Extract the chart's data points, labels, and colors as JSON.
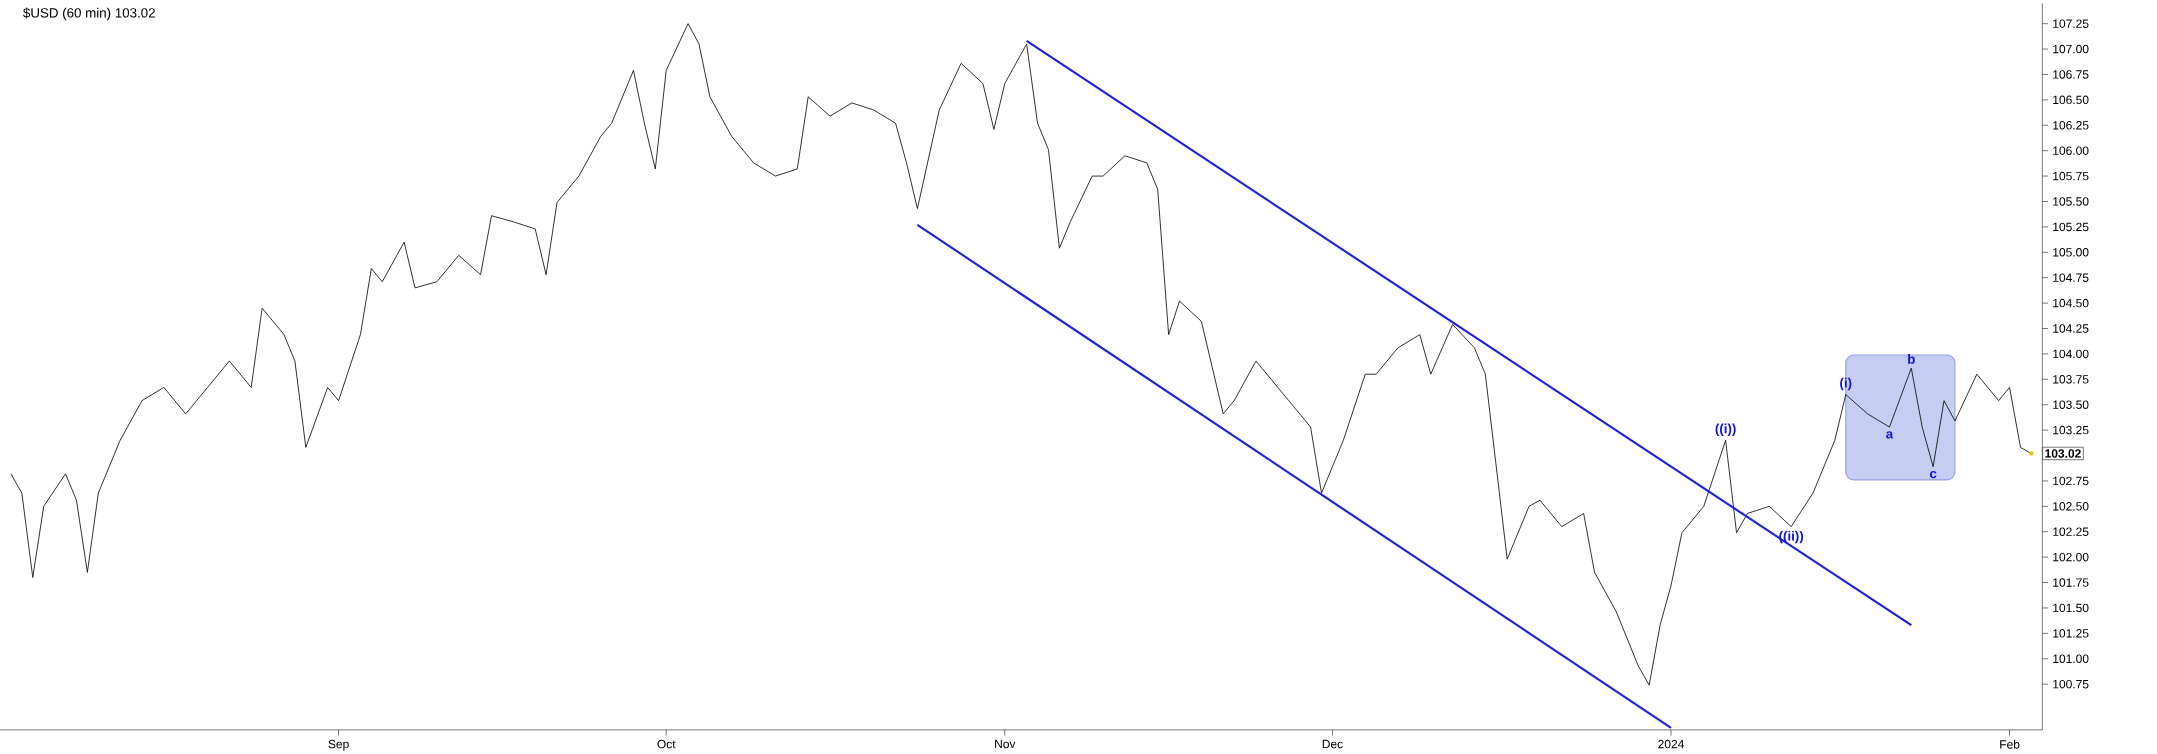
{
  "chart_data": {
    "type": "line",
    "title": "$USD (60 min) 103.02",
    "xlim": [
      "2023-08-01",
      "2024-02-04"
    ],
    "xticks": [
      {
        "value": "2023-09-01",
        "label": "Sep"
      },
      {
        "value": "2023-10-01",
        "label": "Oct"
      },
      {
        "value": "2023-11-01",
        "label": "Nov"
      },
      {
        "value": "2023-12-01",
        "label": "Dec"
      },
      {
        "value": "2024-01-01",
        "label": "2024"
      },
      {
        "value": "2024-02-01",
        "label": "Feb"
      }
    ],
    "ylim": [
      100.3,
      107.45
    ],
    "yticks": [
      100.75,
      {
        "value": 101.0,
        "label": "101.00"
      },
      101.25,
      {
        "value": 101.5,
        "label": "101.50"
      },
      101.75,
      {
        "value": 102.0,
        "label": "102.00"
      },
      102.25,
      {
        "value": 102.5,
        "label": "102.50"
      },
      102.75,
      103.25,
      {
        "value": 103.5,
        "label": "103.50"
      },
      103.75,
      {
        "value": 104.0,
        "label": "104.00"
      },
      104.25,
      {
        "value": 104.5,
        "label": "104.50"
      },
      104.75,
      {
        "value": 105.0,
        "label": "105.00"
      },
      105.25,
      {
        "value": 105.5,
        "label": "105.50"
      },
      105.75,
      {
        "value": 106.0,
        "label": "106.00"
      },
      106.25,
      {
        "value": 106.5,
        "label": "106.50"
      },
      106.75,
      {
        "value": 107.0,
        "label": "107.00"
      },
      107.25
    ],
    "series": [
      {
        "color": "#000000",
        "x": [
          "2023-08-02",
          "2023-08-03",
          "2023-08-04",
          "2023-08-05",
          "2023-08-07",
          "2023-08-08",
          "2023-08-09",
          "2023-08-10",
          "2023-08-12",
          "2023-08-14",
          "2023-08-16",
          "2023-08-18",
          "2023-08-20",
          "2023-08-22",
          "2023-08-24",
          "2023-08-25",
          "2023-08-27",
          "2023-08-28",
          "2023-08-29",
          "2023-08-31",
          "2023-09-01",
          "2023-09-03",
          "2023-09-04",
          "2023-09-05",
          "2023-09-07",
          "2023-09-08",
          "2023-09-10",
          "2023-09-12",
          "2023-09-14",
          "2023-09-15",
          "2023-09-17",
          "2023-09-19",
          "2023-09-20",
          "2023-09-21",
          "2023-09-23",
          "2023-09-25",
          "2023-09-26",
          "2023-09-28",
          "2023-09-29",
          "2023-09-30",
          "2023-10-01",
          "2023-10-03",
          "2023-10-04",
          "2023-10-05",
          "2023-10-07",
          "2023-10-09",
          "2023-10-11",
          "2023-10-13",
          "2023-10-14",
          "2023-10-16",
          "2023-10-18",
          "2023-10-20",
          "2023-10-22",
          "2023-10-23",
          "2023-10-24",
          "2023-10-26",
          "2023-10-28",
          "2023-10-30",
          "2023-10-31",
          "2023-11-01",
          "2023-11-03",
          "2023-11-04",
          "2023-11-05",
          "2023-11-06",
          "2023-11-07",
          "2023-11-09",
          "2023-11-10",
          "2023-11-12",
          "2023-11-14",
          "2023-11-15",
          "2023-11-16",
          "2023-11-17",
          "2023-11-19",
          "2023-11-21",
          "2023-11-22",
          "2023-11-24",
          "2023-11-25",
          "2023-11-27",
          "2023-11-29",
          "2023-11-30",
          "2023-12-02",
          "2023-12-04",
          "2023-12-05",
          "2023-12-07",
          "2023-12-09",
          "2023-12-10",
          "2023-12-12",
          "2023-12-14",
          "2023-12-15",
          "2023-12-16",
          "2023-12-17",
          "2023-12-19",
          "2023-12-20",
          "2023-12-22",
          "2023-12-24",
          "2023-12-25",
          "2023-12-27",
          "2023-12-29",
          "2023-12-30",
          "2023-12-31",
          "2024-01-01",
          "2024-01-02",
          "2024-01-04",
          "2024-01-06",
          "2024-01-07",
          "2024-01-08",
          "2024-01-10",
          "2024-01-12",
          "2024-01-14",
          "2024-01-16",
          "2024-01-17",
          "2024-01-19",
          "2024-01-21",
          "2024-01-23",
          "2024-01-24",
          "2024-01-25",
          "2024-01-26",
          "2024-01-27",
          "2024-01-29",
          "2024-01-31",
          "2024-02-01",
          "2024-02-02",
          "2024-02-03"
        ],
        "values": [
          102.82,
          102.63,
          101.8,
          102.5,
          102.82,
          102.56,
          101.85,
          102.63,
          103.15,
          103.54,
          103.67,
          103.41,
          103.67,
          103.93,
          103.67,
          104.45,
          104.19,
          103.93,
          103.08,
          103.67,
          103.54,
          104.19,
          104.84,
          104.71,
          105.1,
          104.65,
          104.71,
          104.97,
          104.78,
          105.36,
          105.3,
          105.23,
          104.78,
          105.49,
          105.75,
          106.14,
          106.27,
          106.79,
          106.27,
          105.82,
          106.79,
          107.25,
          107.05,
          106.53,
          106.14,
          105.88,
          105.75,
          105.82,
          106.53,
          106.34,
          106.47,
          106.4,
          106.27,
          105.88,
          105.43,
          106.4,
          106.86,
          106.66,
          106.21,
          106.66,
          107.05,
          106.27,
          106.01,
          105.04,
          105.3,
          105.75,
          105.75,
          105.95,
          105.88,
          105.62,
          104.19,
          104.52,
          104.32,
          103.41,
          103.54,
          103.93,
          103.8,
          103.54,
          103.28,
          102.63,
          103.15,
          103.8,
          103.8,
          104.06,
          104.19,
          103.8,
          104.29,
          104.06,
          103.8,
          102.89,
          101.98,
          102.5,
          102.56,
          102.3,
          102.43,
          101.85,
          101.46,
          100.93,
          100.74,
          101.33,
          101.72,
          102.24,
          102.5,
          103.15,
          102.24,
          102.43,
          102.5,
          102.3,
          102.63,
          103.15,
          103.6,
          103.41,
          103.28,
          103.86,
          103.28,
          102.89,
          103.54,
          103.34,
          103.8,
          103.54,
          103.67,
          103.08,
          103.02
        ]
      },
      {
        "color": "#1f1fe0",
        "x": [
          "2023-11-03",
          "2024-01-23"
        ],
        "values": [
          107.08,
          101.33
        ]
      },
      {
        "color": "#1f1fe0",
        "x": [
          "2023-10-24",
          "2024-01-01"
        ],
        "values": [
          105.27,
          100.32
        ]
      },
      {
        "type": "area",
        "color": "#c6cdf2",
        "x": [
          "2024-01-17",
          "2024-01-27"
        ],
        "values": [
          null,
          null
        ],
        "lower": [
          102.76,
          102.76
        ],
        "upper": [
          103.99,
          103.99
        ]
      }
    ],
    "annotations": [
      {
        "text": "((i))",
        "x": "2024-01-06",
        "y": 103.15
      },
      {
        "text": "((ii))",
        "x": "2024-01-12",
        "y": 102.3
      },
      {
        "text": "(i)",
        "x": "2024-01-17",
        "y": 103.6
      },
      {
        "text": "a",
        "x": "2024-01-21",
        "y": 103.28
      },
      {
        "text": "b",
        "x": "2024-01-23",
        "y": 103.86
      },
      {
        "text": "c",
        "x": "2024-01-25",
        "y": 102.89
      },
      {
        "text": "103.02",
        "x": "2024-02-03",
        "y": 103.02
      }
    ]
  }
}
